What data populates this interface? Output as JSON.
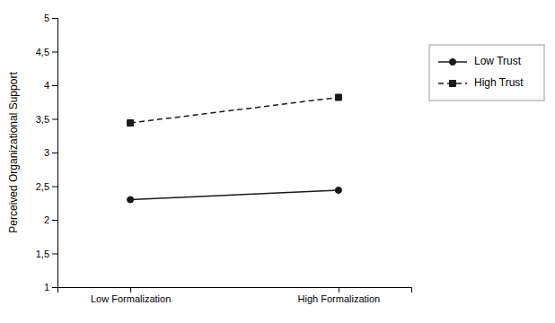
{
  "chart_data": {
    "type": "line",
    "categories": [
      "Low Formalization",
      "High Formalization"
    ],
    "series": [
      {
        "name": "Low Trust",
        "color": "#1a1a1a",
        "values": [
          2.3,
          2.44
        ],
        "marker": "circle",
        "line_style": "solid"
      },
      {
        "name": "High Trust",
        "color": "#1a1a1a",
        "values": [
          3.44,
          3.82
        ],
        "marker": "square",
        "line_style": "dashed"
      }
    ],
    "y_label": "Perceived Organizational Support",
    "ylim": [
      1,
      5
    ],
    "yticks": [
      1,
      {
        "value": 1.5,
        "label": "1,5"
      },
      2,
      {
        "value": 2.5,
        "label": "2,5"
      },
      3,
      {
        "value": 3.5,
        "label": "3,5"
      },
      4,
      {
        "value": 4.5,
        "label": "4,5"
      },
      5
    ],
    "grid": false,
    "legend": "right"
  }
}
